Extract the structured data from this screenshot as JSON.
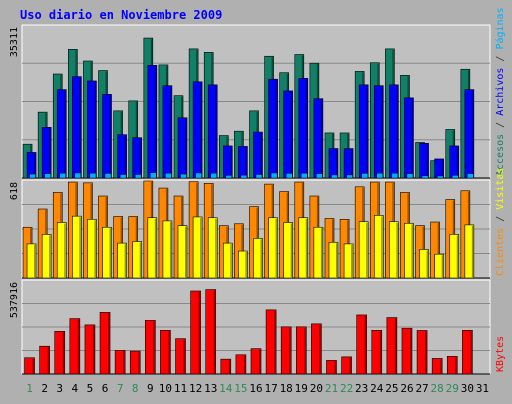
{
  "chart_data": {
    "type": "bar",
    "title": "Uso diario en Noviembre 2009",
    "colors": {
      "background": "#b0b0b0",
      "plot_bg": "#c0c0c0",
      "grid": "#8a8a8a",
      "title": "#0000ff",
      "accesos": "#118066",
      "archivos": "#0000ff",
      "visitas": "#ffff00",
      "clientes": "#ff8800",
      "kbytes": "#ff0000",
      "weekend_label": "#2e8b57",
      "weekday_label": "#000000"
    },
    "days": [
      "1",
      "2",
      "3",
      "4",
      "5",
      "6",
      "7",
      "8",
      "9",
      "10",
      "11",
      "12",
      "13",
      "14",
      "15",
      "16",
      "17",
      "18",
      "19",
      "20",
      "21",
      "22",
      "23",
      "24",
      "25",
      "26",
      "27",
      "28",
      "29",
      "30",
      "31"
    ],
    "weekend_days": [
      "1",
      "7",
      "8",
      "14",
      "15",
      "21",
      "22",
      "28",
      "29"
    ],
    "panels": [
      {
        "name": "accesos-archivos",
        "ymax": 35311,
        "ymax_label": "35311",
        "legend": [
          "Accesos",
          "/",
          "Archivos",
          "/",
          "Páginas"
        ],
        "legend_colors": [
          "#118066",
          "#333333",
          "#0000ff",
          "#333333",
          "#00b0ff"
        ],
        "series": [
          {
            "name": "Accesos",
            "color": "#118066",
            "values": [
              7800,
              15200,
              24000,
              29700,
              27000,
              24800,
              15500,
              17800,
              32300,
              26100,
              19000,
              29800,
              29000,
              9800,
              10800,
              15500,
              28100,
              24300,
              28500,
              26500,
              10400,
              10400,
              24600,
              26600,
              29800,
              23700,
              8200,
              4000,
              11200,
              25100,
              0
            ]
          },
          {
            "name": "Archivos",
            "color": "#0000ff",
            "values": [
              5900,
              11700,
              20400,
              23400,
              22400,
              19300,
              10000,
              9300,
              26000,
              21300,
              13900,
              22200,
              21500,
              7400,
              7300,
              10600,
              22800,
              20100,
              23000,
              18300,
              6800,
              6800,
              21500,
              21300,
              21500,
              18500,
              8000,
              4400,
              7400,
              20400,
              0
            ]
          },
          {
            "name": "Páginas",
            "color": "#00b0ff",
            "values": [
              900,
              1000,
              1100,
              1150,
              1100,
              1050,
              800,
              800,
              1200,
              1100,
              900,
              1150,
              1100,
              600,
              650,
              800,
              1150,
              1050,
              1100,
              1000,
              700,
              700,
              1050,
              1100,
              1100,
              1000,
              500,
              300,
              600,
              1000,
              0
            ]
          }
        ]
      },
      {
        "name": "visitas-clientes",
        "ymax": 618,
        "ymax_label": "618",
        "legend": [
          "Clientes",
          "/",
          "Visitas"
        ],
        "legend_colors": [
          "#ff8800",
          "#333333",
          "#ffff00"
        ],
        "series": [
          {
            "name": "Clientes",
            "color": "#ff8800",
            "values": [
              320,
              435,
              540,
              605,
              600,
              517,
              388,
              388,
              612,
              567,
              517,
              607,
              597,
              330,
              342,
              450,
              592,
              545,
              605,
              517,
              375,
              370,
              575,
              605,
              605,
              540,
              330,
              353,
              495,
              550,
              0
            ]
          },
          {
            "name": "Visitas",
            "color": "#ffff00",
            "values": [
              215,
              275,
              350,
              390,
              370,
              320,
              220,
              230,
              380,
              360,
              330,
              385,
              380,
              220,
              170,
              250,
              380,
              350,
              380,
              320,
              225,
              215,
              355,
              395,
              355,
              345,
              180,
              150,
              275,
              335,
              0
            ]
          }
        ]
      },
      {
        "name": "kbytes",
        "ymax": 537916,
        "ymax_label": "537916",
        "legend": [
          "KBytes"
        ],
        "legend_colors": [
          "#ff0000"
        ],
        "series": [
          {
            "name": "KBytes",
            "color": "#ff0000",
            "values": [
              93000,
              159000,
              244000,
              317000,
              281000,
              353000,
              135000,
              131000,
              307000,
              250000,
              202000,
              475000,
              483000,
              85000,
              110000,
              145000,
              367000,
              270000,
              270000,
              287000,
              78000,
              98000,
              338000,
              250000,
              323000,
              262000,
              249000,
              89000,
              101000,
              250000,
              0
            ]
          }
        ]
      }
    ]
  }
}
